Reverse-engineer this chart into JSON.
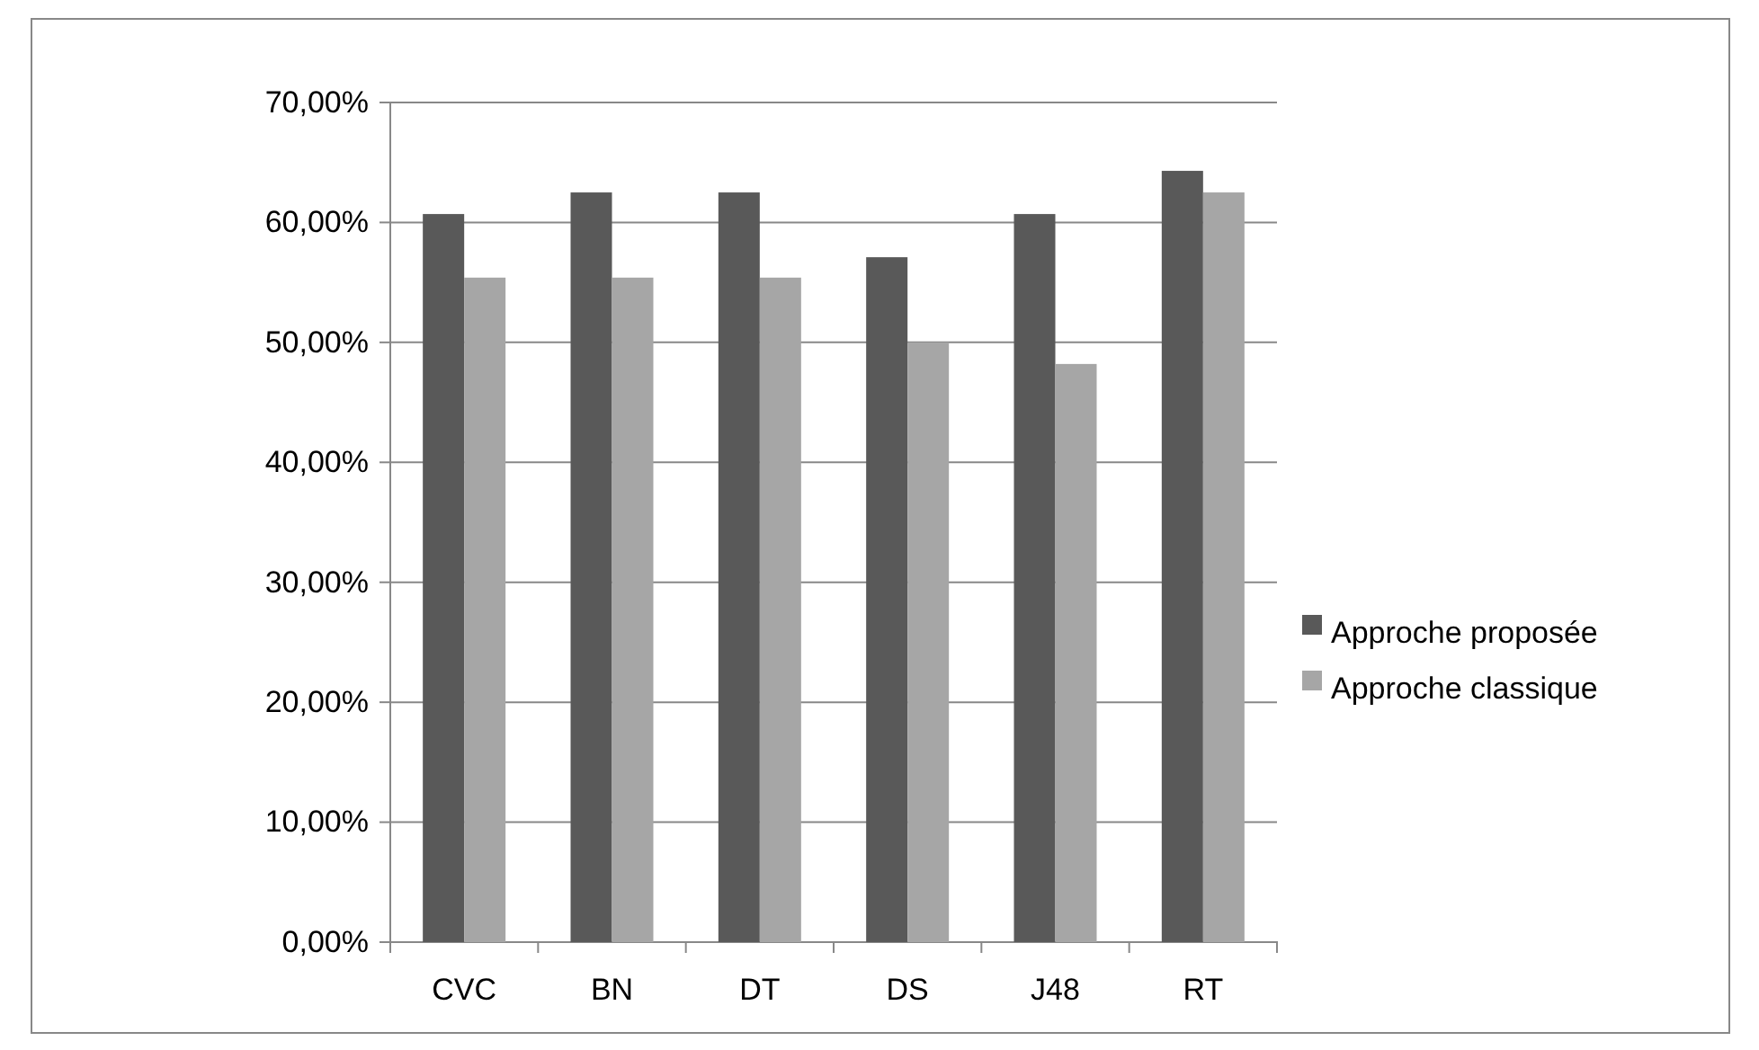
{
  "chart_data": {
    "type": "bar",
    "categories": [
      "CVC",
      "BN",
      "DT",
      "DS",
      "J48",
      "RT"
    ],
    "series": [
      {
        "name": "Approche proposée",
        "color": "#595959",
        "values": [
          60.7,
          62.5,
          62.5,
          57.1,
          60.7,
          64.3
        ]
      },
      {
        "name": "Approche classique",
        "color": "#a6a6a6",
        "values": [
          55.4,
          55.4,
          55.4,
          50.0,
          48.2,
          62.5
        ]
      }
    ],
    "ylim": [
      0,
      70
    ],
    "yticks": [
      {
        "value": 0,
        "label": "0,00%"
      },
      {
        "value": 10,
        "label": "10,00%"
      },
      {
        "value": 20,
        "label": "20,00%"
      },
      {
        "value": 30,
        "label": "30,00%"
      },
      {
        "value": 40,
        "label": "40,00%"
      },
      {
        "value": 50,
        "label": "50,00%"
      },
      {
        "value": 60,
        "label": "60,00%"
      },
      {
        "value": 70,
        "label": "70,00%"
      }
    ],
    "grid": "y",
    "legend": "right"
  }
}
